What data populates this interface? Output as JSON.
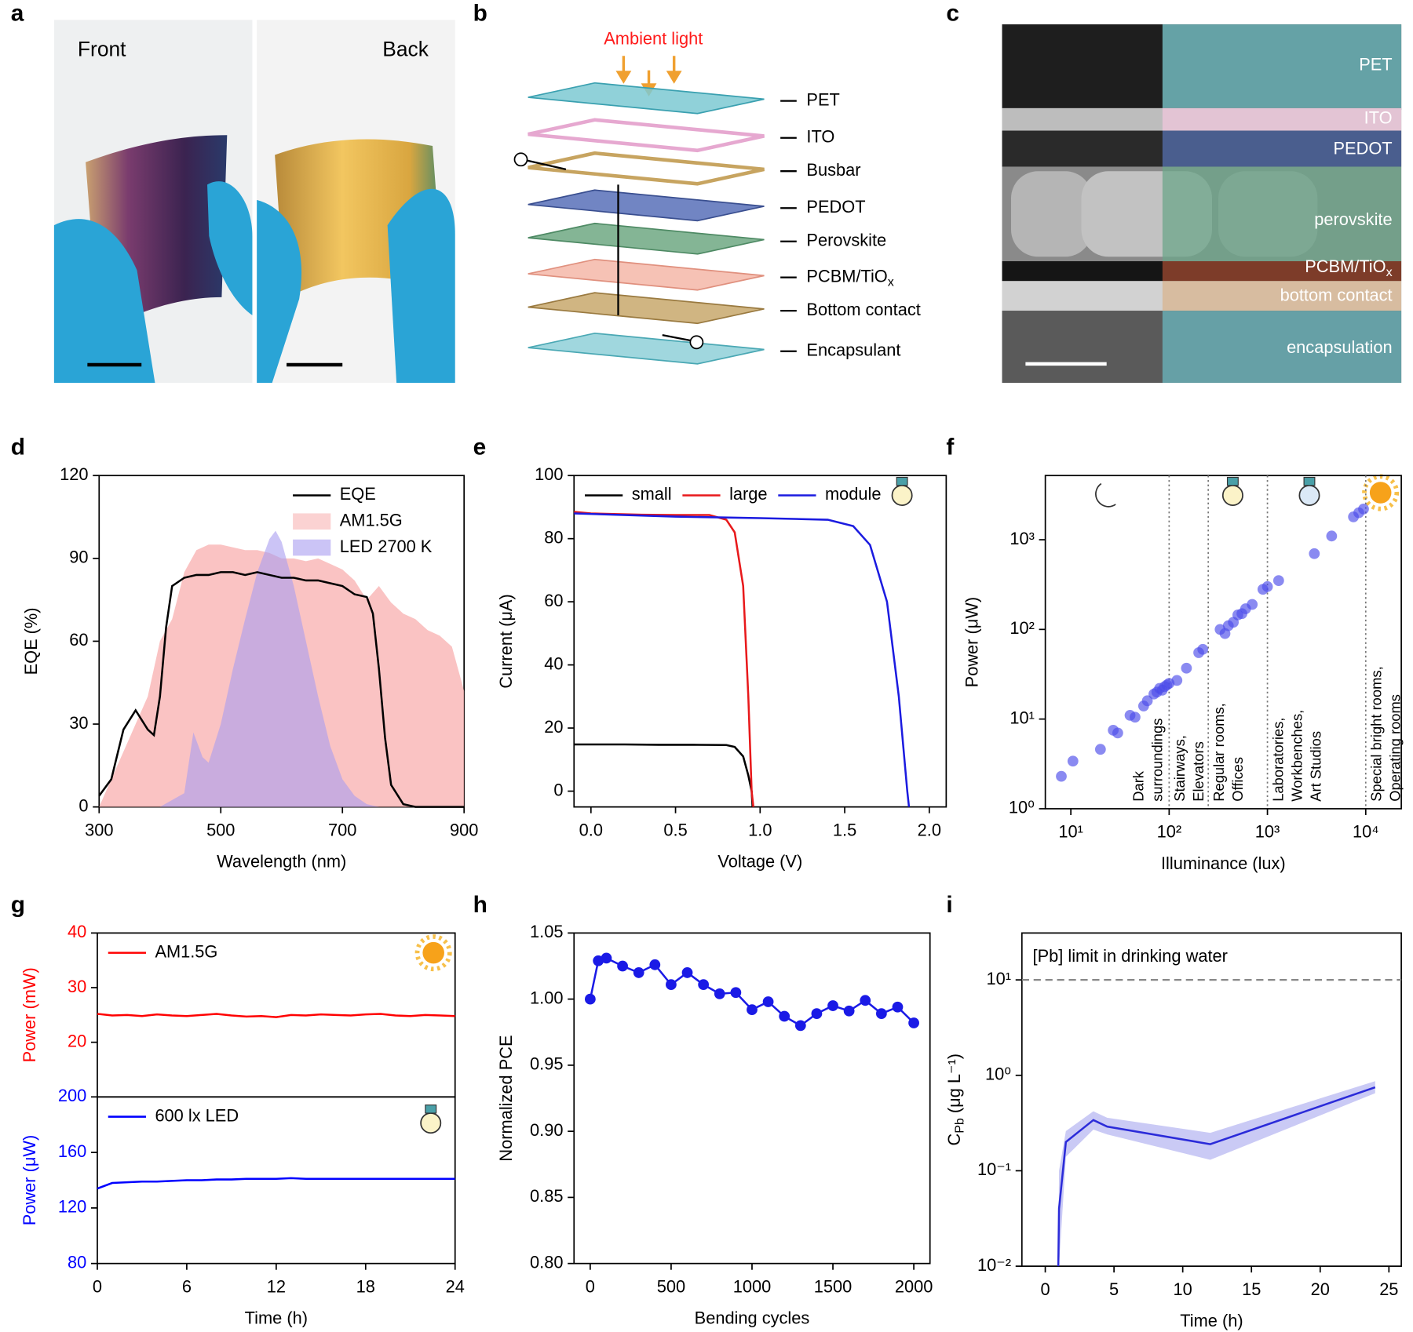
{
  "panel_labels": [
    "a",
    "b",
    "c",
    "d",
    "e",
    "f",
    "g",
    "h",
    "i"
  ],
  "photo": {
    "front": "Front",
    "back": "Back"
  },
  "stack": {
    "light": "Ambient light",
    "layers": [
      "PET",
      "ITO",
      "Busbar",
      "PEDOT",
      "Perovskite",
      {
        "text": "PCBM/TiO",
        "sub": "x"
      },
      "Bottom contact",
      "Encapsulant"
    ]
  },
  "cross_section": {
    "layers": [
      "PET",
      "ITO",
      "PEDOT",
      "perovskite",
      {
        "text": "PCBM/TiO",
        "sub": "x"
      },
      "bottom contact",
      "encapsulation"
    ]
  },
  "chart_data": [
    {
      "type": "line",
      "xlabel": "Wavelength (nm)",
      "ylabel": "EQE (%)",
      "xlim": [
        300,
        900
      ],
      "ylim": [
        0,
        120
      ],
      "xticks": [
        300,
        500,
        700,
        900
      ],
      "yticks": [
        0,
        30,
        60,
        90,
        120
      ],
      "legend": "upper right",
      "series": [
        {
          "name": "EQE",
          "color": "#000000",
          "x": [
            300,
            320,
            340,
            360,
            380,
            390,
            400,
            410,
            420,
            440,
            460,
            480,
            500,
            520,
            540,
            560,
            580,
            600,
            620,
            640,
            660,
            680,
            700,
            720,
            740,
            750,
            760,
            770,
            780,
            800,
            820,
            850,
            900
          ],
          "values": [
            4,
            10,
            28,
            35,
            28,
            26,
            40,
            65,
            80,
            83,
            84,
            84,
            85,
            85,
            84,
            85,
            84,
            83,
            83,
            82,
            82,
            81,
            80,
            77,
            76,
            70,
            50,
            25,
            8,
            1,
            0,
            0,
            0
          ]
        },
        {
          "name": "AM1.5G",
          "color": "#f9b4b4",
          "fill": true,
          "x": [
            300,
            320,
            340,
            360,
            380,
            400,
            420,
            440,
            460,
            480,
            500,
            520,
            540,
            560,
            580,
            600,
            620,
            640,
            660,
            680,
            700,
            720,
            740,
            760,
            780,
            800,
            820,
            840,
            860,
            880,
            900
          ],
          "values": [
            0,
            10,
            20,
            30,
            40,
            60,
            68,
            85,
            93,
            95,
            95,
            94,
            93,
            93,
            92,
            90,
            90,
            89,
            90,
            88,
            86,
            82,
            75,
            80,
            74,
            70,
            68,
            64,
            62,
            58,
            42
          ]
        },
        {
          "name": "LED 2700 K",
          "color": "#a99cf0",
          "fill": true,
          "x": [
            400,
            440,
            455,
            470,
            480,
            500,
            520,
            540,
            560,
            580,
            590,
            600,
            620,
            640,
            660,
            680,
            700,
            720,
            740,
            760
          ],
          "values": [
            0,
            5,
            27,
            18,
            16,
            30,
            50,
            68,
            85,
            97,
            100,
            96,
            80,
            60,
            40,
            22,
            10,
            4,
            1,
            0
          ]
        }
      ]
    },
    {
      "type": "line",
      "xlabel": "Voltage (V)",
      "ylabel": "Current (μA)",
      "xlim": [
        -0.1,
        2.1
      ],
      "ylim": [
        -5,
        100
      ],
      "xticks": [
        {
          "value": 0,
          "label": "0.0"
        },
        {
          "value": 0.5,
          "label": "0.5"
        },
        {
          "value": 1,
          "label": "1.0"
        },
        {
          "value": 1.5,
          "label": "1.5"
        },
        {
          "value": 2,
          "label": "2.0"
        }
      ],
      "yticks": [
        0,
        20,
        40,
        60,
        80,
        100
      ],
      "legend": "upper left",
      "legend_ncol": 3,
      "series": [
        {
          "name": "small",
          "color": "#000000",
          "x": [
            -0.1,
            0,
            0.2,
            0.4,
            0.6,
            0.8,
            0.85,
            0.9,
            0.93,
            0.95,
            0.955
          ],
          "values": [
            14.8,
            14.8,
            14.8,
            14.7,
            14.7,
            14.6,
            14,
            11,
            5,
            0,
            -5
          ]
        },
        {
          "name": "large",
          "color": "#e8191b",
          "x": [
            -0.1,
            0,
            0.3,
            0.5,
            0.7,
            0.8,
            0.85,
            0.9,
            0.93,
            0.95,
            0.96
          ],
          "values": [
            88.5,
            88,
            87.6,
            87.5,
            87.5,
            86,
            82,
            65,
            30,
            0,
            -5
          ]
        },
        {
          "name": "module",
          "color": "#1b1be0",
          "x": [
            -0.1,
            0.5,
            1,
            1.4,
            1.55,
            1.65,
            1.75,
            1.82,
            1.87,
            1.88
          ],
          "values": [
            88,
            87,
            86.5,
            86,
            84,
            78,
            60,
            30,
            0,
            -5
          ]
        }
      ]
    },
    {
      "type": "scatter",
      "xlabel": "Illuminance (lux)",
      "ylabel": "Power (μW)",
      "xscale": "log",
      "yscale": "log",
      "xlim": [
        5.5,
        23000
      ],
      "ylim": [
        1,
        5200
      ],
      "xticks": [
        {
          "value": 10,
          "label": "10¹"
        },
        {
          "value": 100,
          "label": "10²"
        },
        {
          "value": 1000,
          "label": "10³"
        },
        {
          "value": 10000,
          "label": "10⁴"
        }
      ],
      "yticks": [
        {
          "value": 1,
          "label": "10⁰"
        },
        {
          "value": 10,
          "label": "10¹"
        },
        {
          "value": 100,
          "label": "10²"
        },
        {
          "value": 1000,
          "label": "10³"
        }
      ],
      "dividers": [
        100,
        250,
        1000,
        10000
      ],
      "zones": [
        [
          "Dark",
          "surroundings"
        ],
        [
          "Stairways,",
          "Elevators"
        ],
        [
          "Regular rooms,",
          "Offices"
        ],
        [
          "Laboratories,",
          "Workbenches,",
          "Art Studios"
        ],
        [
          "Special bright rooms,",
          "Operating rooms"
        ]
      ],
      "series": [
        {
          "color": "#4b4bea",
          "x": [
            8,
            10.5,
            20,
            27,
            30,
            40,
            45,
            55,
            60,
            70,
            75,
            80,
            85,
            90,
            95,
            100,
            120,
            150,
            200,
            220,
            330,
            370,
            400,
            450,
            500,
            550,
            600,
            700,
            900,
            1000,
            1300,
            3000,
            4500,
            7500,
            8500,
            9500
          ],
          "values": [
            2.3,
            3.4,
            4.6,
            7.5,
            7,
            11,
            10.5,
            14,
            16,
            19,
            20,
            22,
            21,
            23,
            24,
            25,
            27,
            37,
            55,
            60,
            100,
            90,
            110,
            120,
            145,
            150,
            170,
            190,
            280,
            300,
            350,
            700,
            1100,
            1800,
            2000,
            2200
          ]
        }
      ]
    },
    {
      "type": "line",
      "ylabel": "Power (mW)",
      "axis_color": "#ff0000",
      "xlim": [
        0,
        24
      ],
      "ylim": [
        10,
        40
      ],
      "yticks": [
        20,
        30,
        40
      ],
      "legend": "upper left",
      "series": [
        {
          "name": "AM1.5G",
          "color": "#ff0000",
          "x": [
            0,
            1,
            2,
            3,
            4,
            5,
            6,
            7,
            8,
            9,
            10,
            11,
            12,
            13,
            14,
            15,
            16,
            17,
            18,
            19,
            20,
            21,
            22,
            23,
            24
          ],
          "values": [
            25.2,
            24.9,
            25,
            24.8,
            25.1,
            24.9,
            24.8,
            25,
            25.2,
            24.9,
            24.7,
            24.8,
            24.6,
            25,
            24.9,
            25.1,
            25,
            24.9,
            25.1,
            25.2,
            24.9,
            24.8,
            25,
            24.9,
            24.8
          ]
        }
      ]
    },
    {
      "type": "line",
      "xlabel": "Time (h)",
      "ylabel": "Power (μW)",
      "axis_color": "#0000ff",
      "xlim": [
        0,
        24
      ],
      "ylim": [
        80,
        200
      ],
      "xticks": [
        0,
        6,
        12,
        18,
        24
      ],
      "yticks": [
        80,
        120,
        160,
        200
      ],
      "legend": "upper left",
      "series": [
        {
          "name": "600 lx LED",
          "color": "#0000ff",
          "x": [
            0,
            1,
            2,
            3,
            4,
            5,
            6,
            7,
            8,
            9,
            10,
            11,
            12,
            13,
            14,
            15,
            16,
            17,
            18,
            19,
            20,
            21,
            22,
            23,
            24
          ],
          "values": [
            134,
            138,
            138.5,
            139,
            139,
            139.5,
            140,
            140,
            140.5,
            140.5,
            141,
            141,
            141,
            141.5,
            141,
            141,
            141,
            141,
            141,
            141,
            141,
            141,
            141,
            141,
            141
          ]
        }
      ]
    },
    {
      "type": "line",
      "xlabel": "Bending cycles",
      "ylabel": "Normalized PCE",
      "xlim": [
        -100,
        2100
      ],
      "ylim": [
        0.8,
        1.05
      ],
      "xticks": [
        0,
        500,
        1000,
        1500,
        2000
      ],
      "yticks": [
        {
          "value": 0.8,
          "label": "0.80"
        },
        0.85,
        {
          "value": 0.9,
          "label": "0.90"
        },
        0.95,
        {
          "value": 1,
          "label": "1.00"
        },
        1.05
      ],
      "series": [
        {
          "color": "#1a1ae6",
          "markers": true,
          "x": [
            0,
            50,
            100,
            200,
            300,
            400,
            500,
            600,
            700,
            800,
            900,
            1000,
            1100,
            1200,
            1300,
            1400,
            1500,
            1600,
            1700,
            1800,
            1900,
            2000
          ],
          "values": [
            1.0,
            1.029,
            1.031,
            1.025,
            1.02,
            1.026,
            1.011,
            1.02,
            1.011,
            1.004,
            1.005,
            0.992,
            0.998,
            0.987,
            0.98,
            0.989,
            0.995,
            0.991,
            0.999,
            0.989,
            0.994,
            0.982
          ]
        }
      ]
    },
    {
      "type": "line",
      "xlabel": "Time (h)",
      "ylabel": {
        "text": "C",
        "sub": "Pb",
        "rest": " (μg L⁻¹)"
      },
      "yscale": "log",
      "xlim": [
        -1.7,
        25.9
      ],
      "ylim": [
        0.01,
        31
      ],
      "xticks": [
        0,
        5,
        10,
        15,
        20,
        25
      ],
      "yticks": [
        {
          "value": 0.01,
          "label": "10⁻²"
        },
        {
          "value": 0.1,
          "label": "10⁻¹"
        },
        {
          "value": 1,
          "label": "10⁰"
        },
        {
          "value": 10,
          "label": "10¹"
        }
      ],
      "hline": {
        "value": 10,
        "label": "[Pb] limit in drinking water"
      },
      "series": [
        {
          "color": "#2b2bd9",
          "x": [
            0.95,
            1,
            1.5,
            3.5,
            4.5,
            12,
            24
          ],
          "values": [
            0.01,
            0.04,
            0.2,
            0.34,
            0.29,
            0.19,
            0.75
          ],
          "lower": [
            0.01,
            0.01,
            0.14,
            0.27,
            0.24,
            0.13,
            0.65
          ],
          "upper": [
            0.01,
            0.1,
            0.26,
            0.42,
            0.36,
            0.25,
            0.87
          ]
        }
      ]
    }
  ]
}
